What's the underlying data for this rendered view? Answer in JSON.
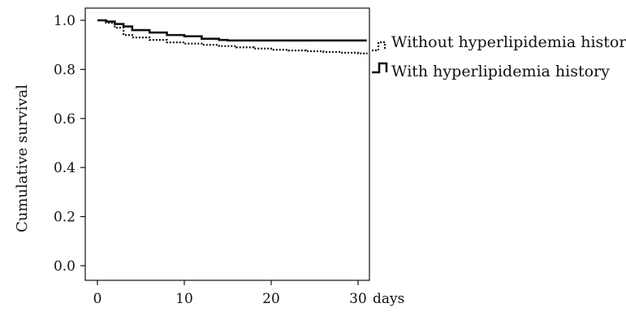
{
  "chart_data": {
    "type": "line",
    "title": "",
    "xlabel": "",
    "x_unit_label": "days",
    "ylabel": "Cumulative survival",
    "xlim": [
      0,
      31
    ],
    "ylim": [
      0.0,
      1.0
    ],
    "x_ticks": [
      0,
      10,
      20,
      30
    ],
    "y_ticks": [
      "0.0",
      "0.2",
      "0.4",
      "0.6",
      "0.8",
      "1.0"
    ],
    "grid": false,
    "legend_position": "right",
    "series": [
      {
        "name": "Without hyperlipidemia history",
        "style": "dotted",
        "color": "#111111",
        "x": [
          0,
          1,
          2,
          3,
          4,
          6,
          8,
          10,
          12,
          14,
          16,
          18,
          20,
          22,
          24,
          26,
          28,
          30,
          31
        ],
        "y": [
          1.0,
          0.99,
          0.97,
          0.94,
          0.93,
          0.92,
          0.91,
          0.905,
          0.9,
          0.895,
          0.89,
          0.885,
          0.88,
          0.877,
          0.874,
          0.871,
          0.868,
          0.865,
          0.862
        ]
      },
      {
        "name": "With hyperlipidemia history",
        "style": "solid",
        "color": "#111111",
        "x": [
          0,
          1,
          2,
          3,
          4,
          6,
          8,
          10,
          12,
          14,
          15,
          20,
          25,
          31
        ],
        "y": [
          1.0,
          0.995,
          0.985,
          0.975,
          0.96,
          0.95,
          0.94,
          0.935,
          0.925,
          0.92,
          0.918,
          0.918,
          0.918,
          0.918
        ]
      }
    ]
  }
}
